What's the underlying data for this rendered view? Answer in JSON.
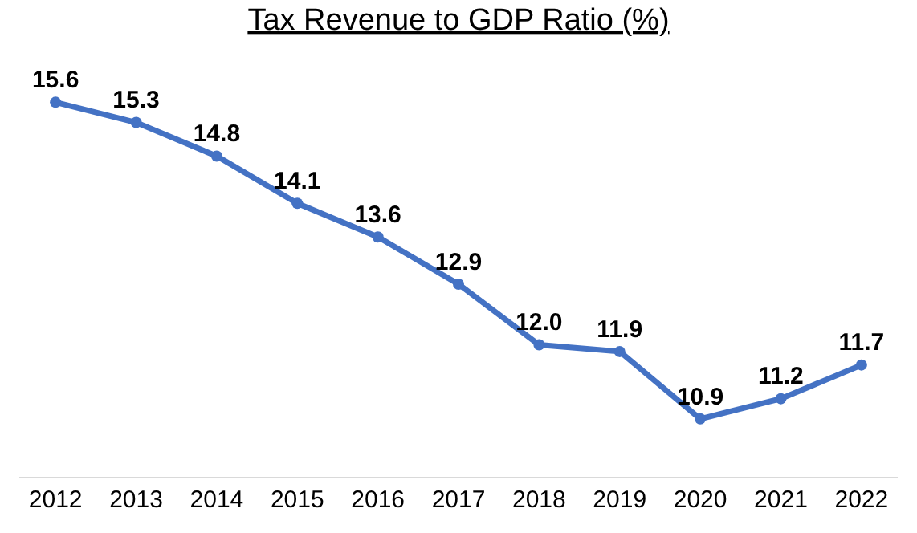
{
  "chart_data": {
    "type": "line",
    "title": "Tax Revenue to GDP Ratio (%)",
    "categories": [
      "2012",
      "2013",
      "2014",
      "2015",
      "2016",
      "2017",
      "2018",
      "2019",
      "2020",
      "2021",
      "2022"
    ],
    "series": [
      {
        "color": "#4472c4",
        "values": [
          15.6,
          15.3,
          14.8,
          14.1,
          13.6,
          12.9,
          12.0,
          11.9,
          10.9,
          11.2,
          11.7
        ],
        "value_labels": [
          "15.6",
          "15.3",
          "14.8",
          "14.1",
          "13.6",
          "12.9",
          "12.0",
          "11.9",
          "10.9",
          "11.2",
          "11.7"
        ]
      }
    ],
    "marker": "circle",
    "line_style": "solid"
  }
}
